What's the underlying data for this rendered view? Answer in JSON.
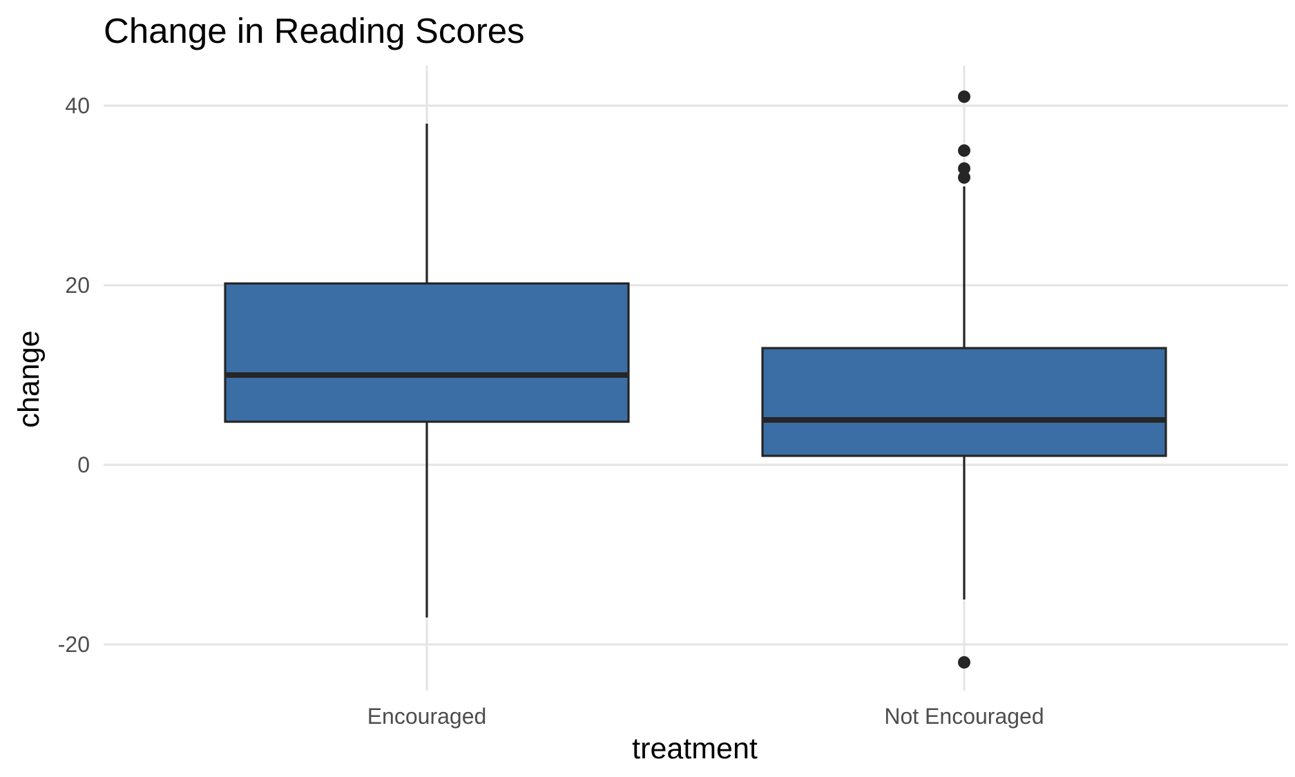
{
  "chart_data": {
    "type": "boxplot",
    "title": "Change in Reading Scores",
    "xlabel": "treatment",
    "ylabel": "change",
    "categories": [
      "Encouraged",
      "Not Encouraged"
    ],
    "ylim": [
      -25,
      45
    ],
    "yticks": [
      -20,
      0,
      20,
      40
    ],
    "grid": true,
    "fill_color": "#3a6ea5",
    "line_color": "#262626",
    "boxes": [
      {
        "category": "Encouraged",
        "whisker_low": -17,
        "q1": 4.8,
        "median": 10,
        "q3": 20.2,
        "whisker_high": 38,
        "outliers": []
      },
      {
        "category": "Not Encouraged",
        "whisker_low": -15,
        "q1": 1,
        "median": 5,
        "q3": 13,
        "whisker_high": 31,
        "outliers": [
          41,
          35,
          33,
          32,
          -22
        ]
      }
    ]
  }
}
